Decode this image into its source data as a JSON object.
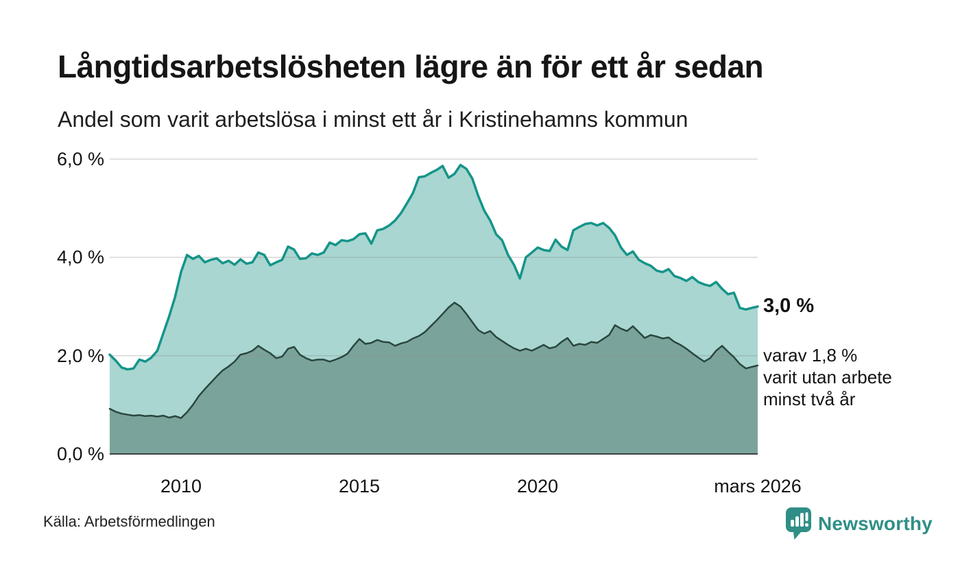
{
  "header": {
    "title": "Långtidsarbetslösheten lägre än för ett år sedan",
    "subtitle": "Andel som varit arbetslösa i minst ett år i Kristinehamns kommun"
  },
  "chart_data": {
    "type": "area",
    "title": "Långtidsarbetslösheten lägre än för ett år sedan",
    "subtitle": "Andel som varit arbetslösa i minst ett år i Kristinehamns kommun",
    "unit": "%",
    "xlim": [
      2008.0,
      2026.1667
    ],
    "ylim": [
      0,
      6
    ],
    "grid": "horizontal",
    "x_start_year": 2008.0,
    "x_step_years": 0.166667,
    "x_ticks": [
      {
        "label": "2010",
        "year": 2010
      },
      {
        "label": "2015",
        "year": 2015
      },
      {
        "label": "2020",
        "year": 2020
      },
      {
        "label": "mars 2026",
        "year": 2026.1667
      }
    ],
    "y_ticks": [
      {
        "label": "6,0 %",
        "value": 6
      },
      {
        "label": "4,0 %",
        "value": 4
      },
      {
        "label": "2,0 %",
        "value": 2
      },
      {
        "label": "0,0 %",
        "value": 0
      }
    ],
    "series": [
      {
        "id": "unemployed-at-least-one-year",
        "line_color": "#16948a",
        "fill_color": "#a9d6d0",
        "line_width": 3.5,
        "latest_value_label": "3,0 %",
        "values": [
          2.02,
          1.9,
          1.76,
          1.72,
          1.74,
          1.92,
          1.88,
          1.96,
          2.1,
          2.45,
          2.8,
          3.2,
          3.7,
          4.05,
          3.97,
          4.03,
          3.9,
          3.95,
          3.98,
          3.88,
          3.93,
          3.85,
          3.96,
          3.87,
          3.9,
          4.1,
          4.05,
          3.84,
          3.9,
          3.95,
          4.22,
          4.16,
          3.97,
          3.98,
          4.08,
          4.05,
          4.1,
          4.3,
          4.25,
          4.35,
          4.33,
          4.37,
          4.47,
          4.49,
          4.28,
          4.55,
          4.58,
          4.65,
          4.75,
          4.9,
          5.1,
          5.31,
          5.63,
          5.65,
          5.72,
          5.78,
          5.86,
          5.62,
          5.7,
          5.88,
          5.8,
          5.6,
          5.25,
          4.95,
          4.75,
          4.47,
          4.35,
          4.05,
          3.85,
          3.57,
          4.0,
          4.1,
          4.2,
          4.15,
          4.13,
          4.36,
          4.22,
          4.15,
          4.55,
          4.62,
          4.68,
          4.7,
          4.65,
          4.7,
          4.6,
          4.45,
          4.2,
          4.05,
          4.12,
          3.95,
          3.88,
          3.83,
          3.73,
          3.7,
          3.76,
          3.62,
          3.58,
          3.52,
          3.6,
          3.5,
          3.45,
          3.42,
          3.5,
          3.36,
          3.25,
          3.28,
          2.97,
          2.94,
          2.97,
          3.0
        ]
      },
      {
        "id": "unemployed-at-least-two-years",
        "line_color": "#2a463f",
        "fill_color": "#7aa49b",
        "line_width": 2.5,
        "latest_value_label": "1,8 %",
        "values": [
          0.92,
          0.86,
          0.82,
          0.8,
          0.78,
          0.79,
          0.77,
          0.78,
          0.76,
          0.78,
          0.74,
          0.77,
          0.73,
          0.85,
          1.0,
          1.18,
          1.32,
          1.45,
          1.58,
          1.7,
          1.78,
          1.88,
          2.02,
          2.05,
          2.1,
          2.2,
          2.12,
          2.05,
          1.95,
          1.98,
          2.14,
          2.18,
          2.02,
          1.95,
          1.9,
          1.92,
          1.92,
          1.88,
          1.92,
          1.97,
          2.04,
          2.2,
          2.34,
          2.24,
          2.26,
          2.32,
          2.28,
          2.27,
          2.2,
          2.25,
          2.28,
          2.35,
          2.4,
          2.48,
          2.6,
          2.72,
          2.85,
          2.98,
          3.08,
          3.0,
          2.85,
          2.68,
          2.52,
          2.45,
          2.5,
          2.38,
          2.3,
          2.22,
          2.15,
          2.1,
          2.14,
          2.1,
          2.16,
          2.22,
          2.15,
          2.18,
          2.28,
          2.36,
          2.2,
          2.24,
          2.22,
          2.28,
          2.26,
          2.34,
          2.42,
          2.62,
          2.55,
          2.5,
          2.6,
          2.48,
          2.36,
          2.42,
          2.39,
          2.35,
          2.37,
          2.28,
          2.22,
          2.14,
          2.05,
          1.96,
          1.88,
          1.95,
          2.1,
          2.2,
          2.08,
          1.97,
          1.83,
          1.74,
          1.77,
          1.8
        ]
      }
    ],
    "annotations": {
      "primary": "3,0 %",
      "secondary_lines": [
        "varav 1,8 %",
        "varit utan arbete",
        "minst två år"
      ]
    },
    "grid_color": "#8a8a8a",
    "axis_color": "#3f3f3f"
  },
  "footer": {
    "source": "Källa: Arbetsförmedlingen",
    "brand": "Newsworthy",
    "brand_color": "#2f8f87"
  }
}
